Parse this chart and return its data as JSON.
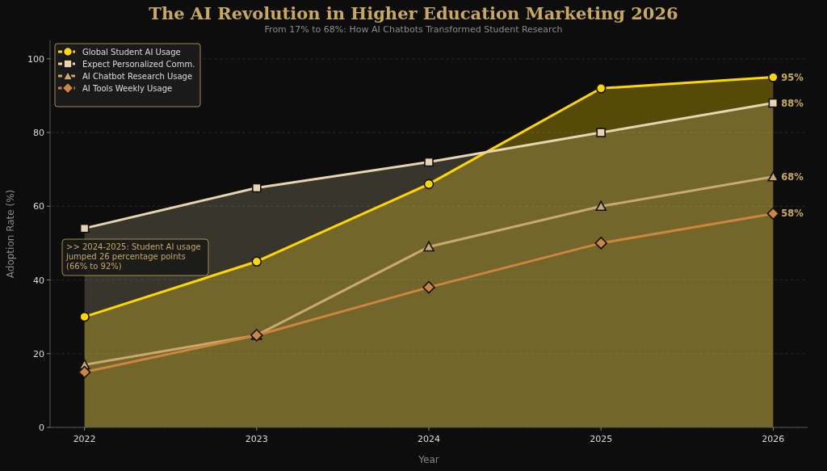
{
  "chart_data": {
    "type": "line",
    "title": "The AI Revolution in Higher Education Marketing 2026",
    "subtitle": "From 17% to 68%: How AI Chatbots Transformed Student Research",
    "xlabel": "Year",
    "ylabel": "Adoption Rate (%)",
    "x": [
      2022,
      2023,
      2024,
      2025,
      2026
    ],
    "xlim": [
      2021.8,
      2026.2
    ],
    "xticks": [
      2022,
      2023,
      2024,
      2025,
      2026
    ],
    "ylim": [
      0,
      105
    ],
    "yticks": [
      0,
      20,
      40,
      60,
      80,
      100
    ],
    "grid": "y",
    "legend": "top left",
    "series": [
      {
        "name": "Global Student AI Usage",
        "type": "area",
        "color": "#ffd700",
        "marker": "circle",
        "values": [
          30,
          45,
          66,
          92,
          95
        ],
        "value_labels": [
          null,
          null,
          null,
          null,
          "95%"
        ]
      },
      {
        "name": "Expect Personalized Comm.",
        "type": "area",
        "color": "#e8d5b0",
        "marker": "square",
        "values": [
          54,
          65,
          72,
          80,
          88
        ],
        "value_labels": [
          null,
          null,
          null,
          null,
          "88%"
        ]
      },
      {
        "name": "AI Chatbot Research Usage",
        "color": "#c9a96e",
        "marker": "triangle",
        "values": [
          17,
          25,
          49,
          60,
          68
        ],
        "value_labels": [
          null,
          null,
          null,
          null,
          "68%"
        ]
      },
      {
        "name": "AI Tools Weekly Usage",
        "color": "#cd853f",
        "marker": "diamond",
        "values": [
          15,
          25,
          38,
          50,
          58
        ],
        "value_labels": [
          null,
          null,
          null,
          null,
          "58%"
        ]
      }
    ],
    "annotations": [
      ">> 2024-2025: Student AI usage jumped 26 percentage points (66% to 92%)"
    ]
  }
}
